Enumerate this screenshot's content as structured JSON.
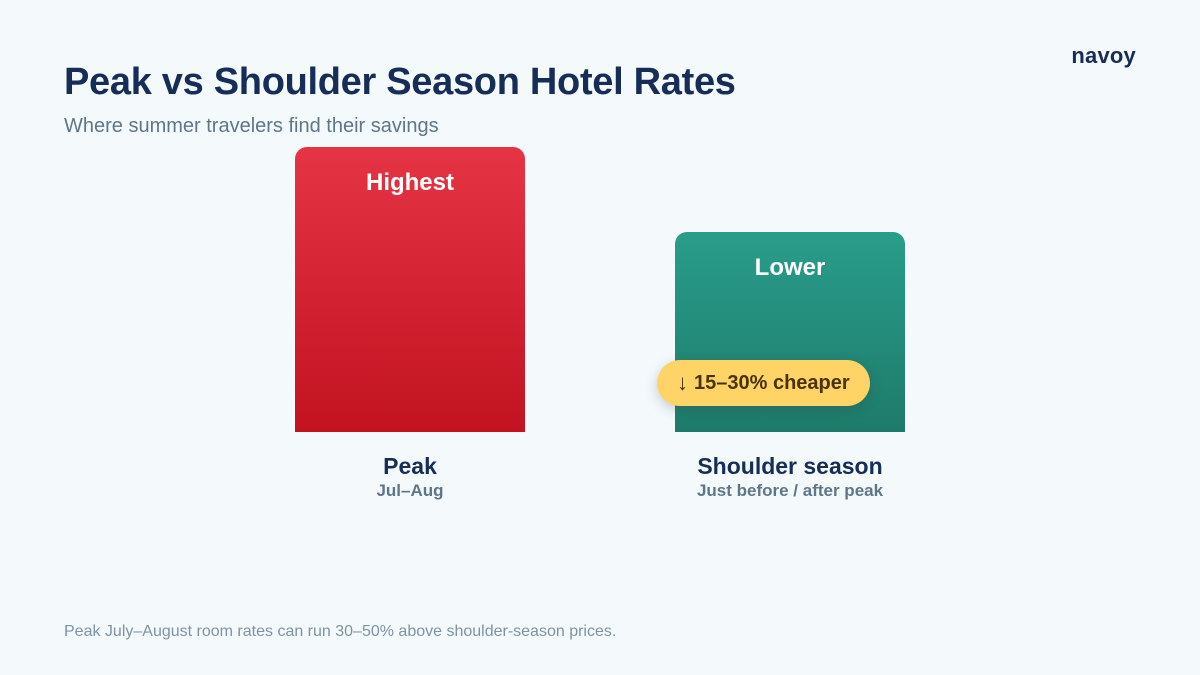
{
  "brand": "navoy",
  "footnote": "Peak July–August room rates can run 30–50% above shoulder-season prices.",
  "colors": {
    "peak_top": "#e53444",
    "peak_bottom": "#c21321",
    "shoulder_top": "#2a9d8b",
    "shoulder_bottom": "#1e7b6a",
    "badge": "#fdd465",
    "title": "#152d57"
  },
  "chart_data": {
    "type": "bar",
    "title": "Peak vs Shoulder Season Hotel Rates",
    "subtitle": "Where summer travelers find their savings",
    "xlabel": "",
    "ylabel": "",
    "categories": [
      "Peak",
      "Shoulder season"
    ],
    "category_subtitles": [
      "Jul–Aug",
      "Just before / after peak"
    ],
    "values": [
      100,
      70
    ],
    "bar_labels": [
      "Highest",
      "Lower"
    ],
    "ylim": [
      0,
      100
    ],
    "grid": false,
    "legend": "none",
    "annotation": {
      "icon": "arrow-down-icon",
      "arrow": "↓",
      "text": "15–30% cheaper",
      "category": "Shoulder season"
    }
  }
}
